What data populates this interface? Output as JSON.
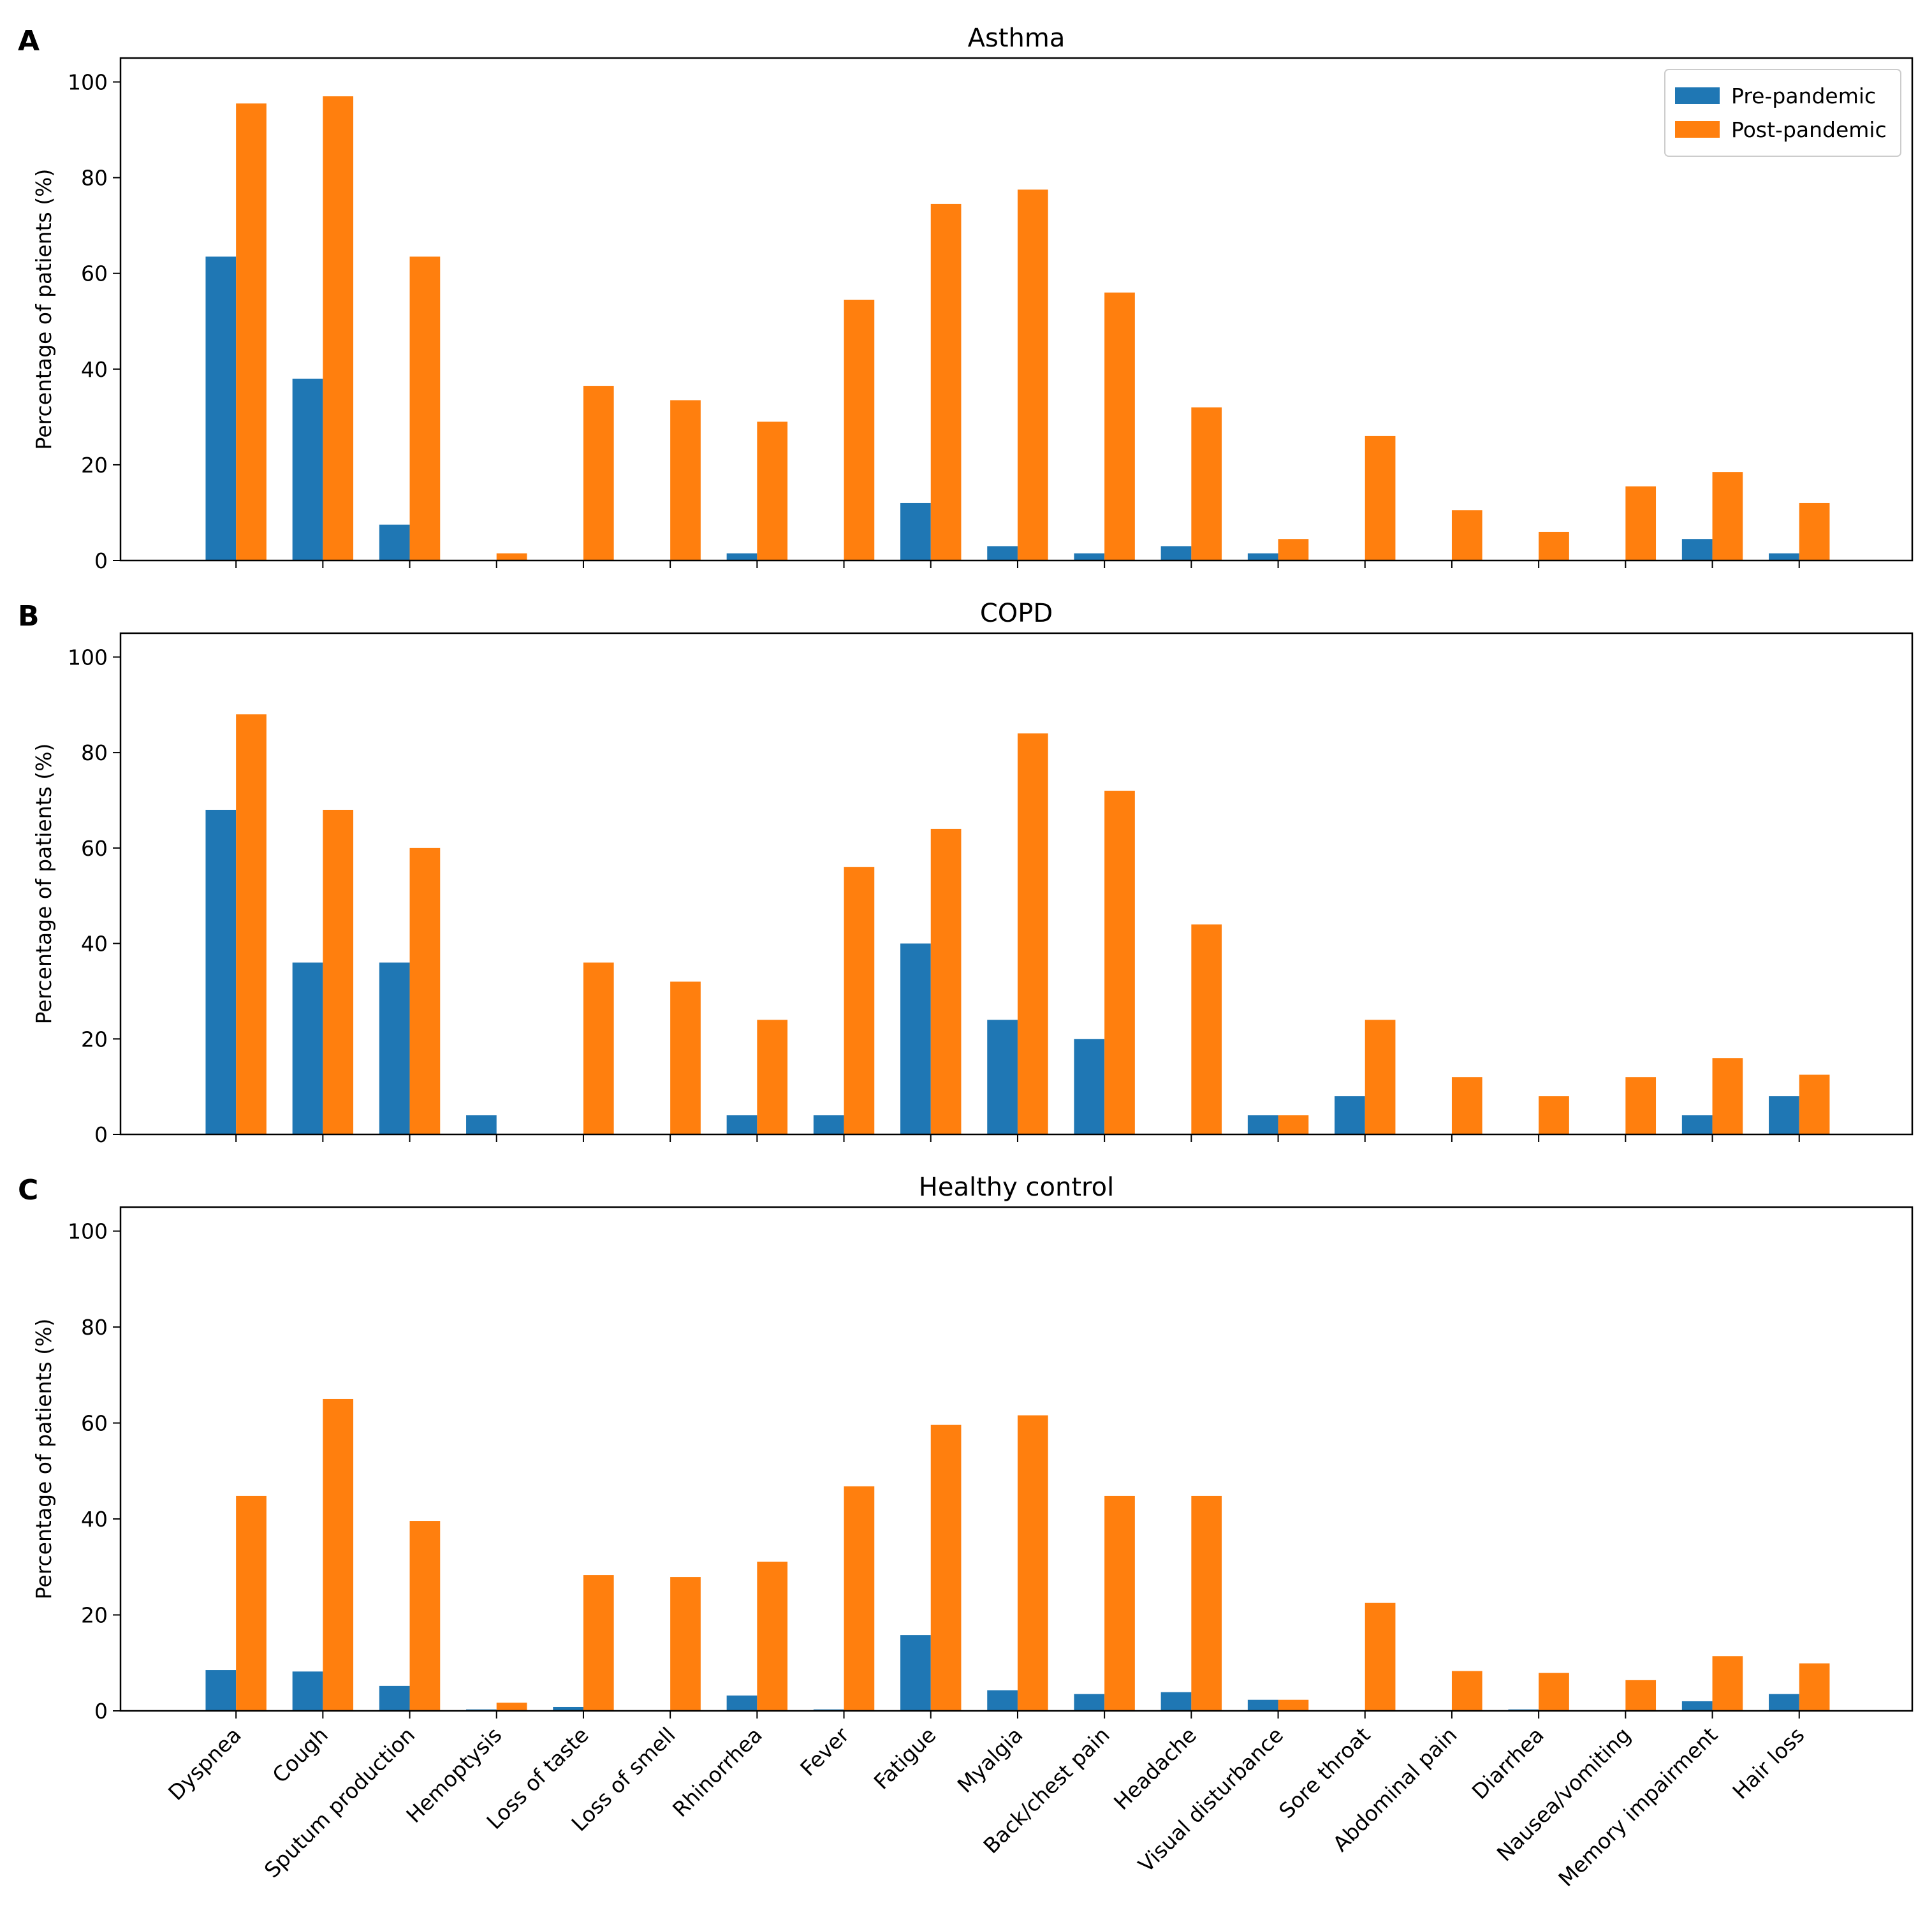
{
  "chart_data": [
    {
      "type": "bar",
      "panel_label": "A",
      "title": "Asthma",
      "y_label": "Percentage of patients (%)",
      "legend": "upper right",
      "ylim": [
        0,
        105
      ],
      "yticks": [
        0,
        20,
        40,
        60,
        80,
        100
      ],
      "series": [
        {
          "name": "Pre-pandemic",
          "color": "#1f77b4",
          "values": [
            63.5,
            38,
            7.5,
            0,
            0,
            0,
            1.5,
            0,
            12,
            3,
            1.5,
            3,
            1.5,
            0,
            0,
            0,
            0,
            4.5,
            1.5
          ]
        },
        {
          "name": "Post-pandemic",
          "color": "#ff7f0e",
          "values": [
            95.5,
            97,
            63.5,
            1.5,
            36.5,
            33.5,
            29,
            54.5,
            74.5,
            77.5,
            56,
            32,
            4.5,
            26,
            10.5,
            6,
            15.5,
            18.5,
            12
          ]
        }
      ]
    },
    {
      "type": "bar",
      "panel_label": "B",
      "title": "COPD",
      "y_label": "Percentage of patients (%)",
      "ylim": [
        0,
        105
      ],
      "yticks": [
        0,
        20,
        40,
        60,
        80,
        100
      ],
      "series": [
        {
          "color": "#1f77b4",
          "values": [
            68,
            36,
            36,
            4,
            0,
            0,
            4,
            4,
            40,
            24,
            20,
            0,
            4,
            8,
            0,
            0,
            0,
            4,
            8
          ]
        },
        {
          "color": "#ff7f0e",
          "values": [
            88,
            68,
            60,
            0,
            36,
            32,
            24,
            56,
            64,
            84,
            72,
            44,
            4,
            24,
            12,
            8,
            12,
            16,
            12.5
          ]
        }
      ]
    },
    {
      "type": "bar",
      "panel_label": "C",
      "title": "Healthy control",
      "y_label": "Percentage of patients (%)",
      "ylim": [
        0,
        105
      ],
      "yticks": [
        0,
        20,
        40,
        60,
        80,
        100
      ],
      "categories": [
        "Dyspnea",
        "Cough",
        "Sputum production",
        "Hemoptysis",
        "Loss of taste",
        "Loss of smell",
        "Rhinorrhea",
        "Fever",
        "Fatigue",
        "Myalgia",
        "Back/chest pain",
        "Headache",
        "Visual disturbance",
        "Sore throat",
        "Abdominal pain",
        "Diarrhea",
        "Nausea/vomiting",
        "Memory impairment",
        "Hair loss"
      ],
      "series": [
        {
          "color": "#1f77b4",
          "values": [
            8.5,
            8.2,
            5.2,
            0.3,
            0.8,
            0,
            3.2,
            0.3,
            15.8,
            4.3,
            3.5,
            3.9,
            2.3,
            0,
            0,
            0.3,
            0,
            2,
            3.5
          ]
        },
        {
          "color": "#ff7f0e",
          "values": [
            44.8,
            65,
            39.6,
            1.7,
            28.3,
            27.9,
            31.1,
            46.8,
            59.6,
            61.6,
            44.8,
            44.8,
            2.3,
            22.5,
            8.3,
            7.9,
            6.4,
            11.4,
            9.9
          ]
        }
      ]
    }
  ]
}
